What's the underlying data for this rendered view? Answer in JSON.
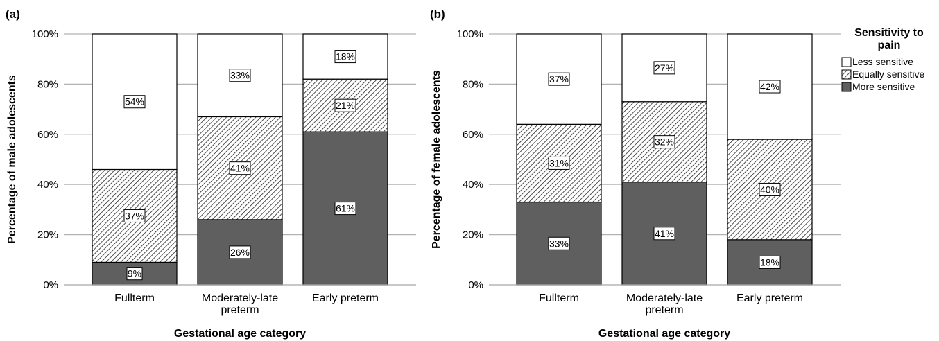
{
  "chart_data": [
    {
      "type": "bar",
      "stacked": true,
      "panel_label": "(a)",
      "categories": [
        "Fullterm",
        "Moderately-late preterm",
        "Early preterm"
      ],
      "category_lines": [
        [
          "Fullterm"
        ],
        [
          "Moderately-late",
          "preterm"
        ],
        [
          "Early preterm"
        ]
      ],
      "series": [
        {
          "name": "More sensitive",
          "values": [
            9,
            26,
            61
          ],
          "labels": [
            "9%",
            "26%",
            "61%"
          ]
        },
        {
          "name": "Equally sensitive",
          "values": [
            37,
            41,
            21
          ],
          "labels": [
            "37%",
            "41%",
            "21%"
          ]
        },
        {
          "name": "Less sensitive",
          "values": [
            54,
            33,
            18
          ],
          "labels": [
            "54%",
            "33%",
            "18%"
          ]
        }
      ],
      "xlabel": "Gestational age category",
      "ylabel": "Percentage of male adolescents",
      "ylim": [
        0,
        100
      ],
      "yticks": [
        "0%",
        "20%",
        "40%",
        "60%",
        "80%",
        "100%"
      ],
      "grid": true
    },
    {
      "type": "bar",
      "stacked": true,
      "panel_label": "(b)",
      "categories": [
        "Fullterm",
        "Moderately-late preterm",
        "Early preterm"
      ],
      "category_lines": [
        [
          "Fullterm"
        ],
        [
          "Moderately-late",
          "preterm"
        ],
        [
          "Early preterm"
        ]
      ],
      "series": [
        {
          "name": "More sensitive",
          "values": [
            33,
            41,
            18
          ],
          "labels": [
            "33%",
            "41%",
            "18%"
          ]
        },
        {
          "name": "Equally sensitive",
          "values": [
            31,
            32,
            40
          ],
          "labels": [
            "31%",
            "32%",
            "40%"
          ]
        },
        {
          "name": "Less sensitive",
          "values": [
            37,
            27,
            42
          ],
          "labels": [
            "37%",
            "27%",
            "42%"
          ]
        }
      ],
      "xlabel": "Gestational age category",
      "ylabel": "Percentage of female adolescents",
      "ylim": [
        0,
        100
      ],
      "yticks": [
        "0%",
        "20%",
        "40%",
        "60%",
        "80%",
        "100%"
      ],
      "grid": true
    }
  ],
  "legend": {
    "title_lines": [
      "Sensitivity to",
      "pain"
    ],
    "placement": "right",
    "items": [
      {
        "label": "Less sensitive",
        "pattern": "white"
      },
      {
        "label": "Equally sensitive",
        "pattern": "hatch"
      },
      {
        "label": "More sensitive",
        "pattern": "dark"
      }
    ]
  },
  "colors": {
    "more_sensitive": "#5f5f5f",
    "less_sensitive": "#ffffff",
    "grid": "#b3b3b3",
    "outline": "#000000"
  }
}
